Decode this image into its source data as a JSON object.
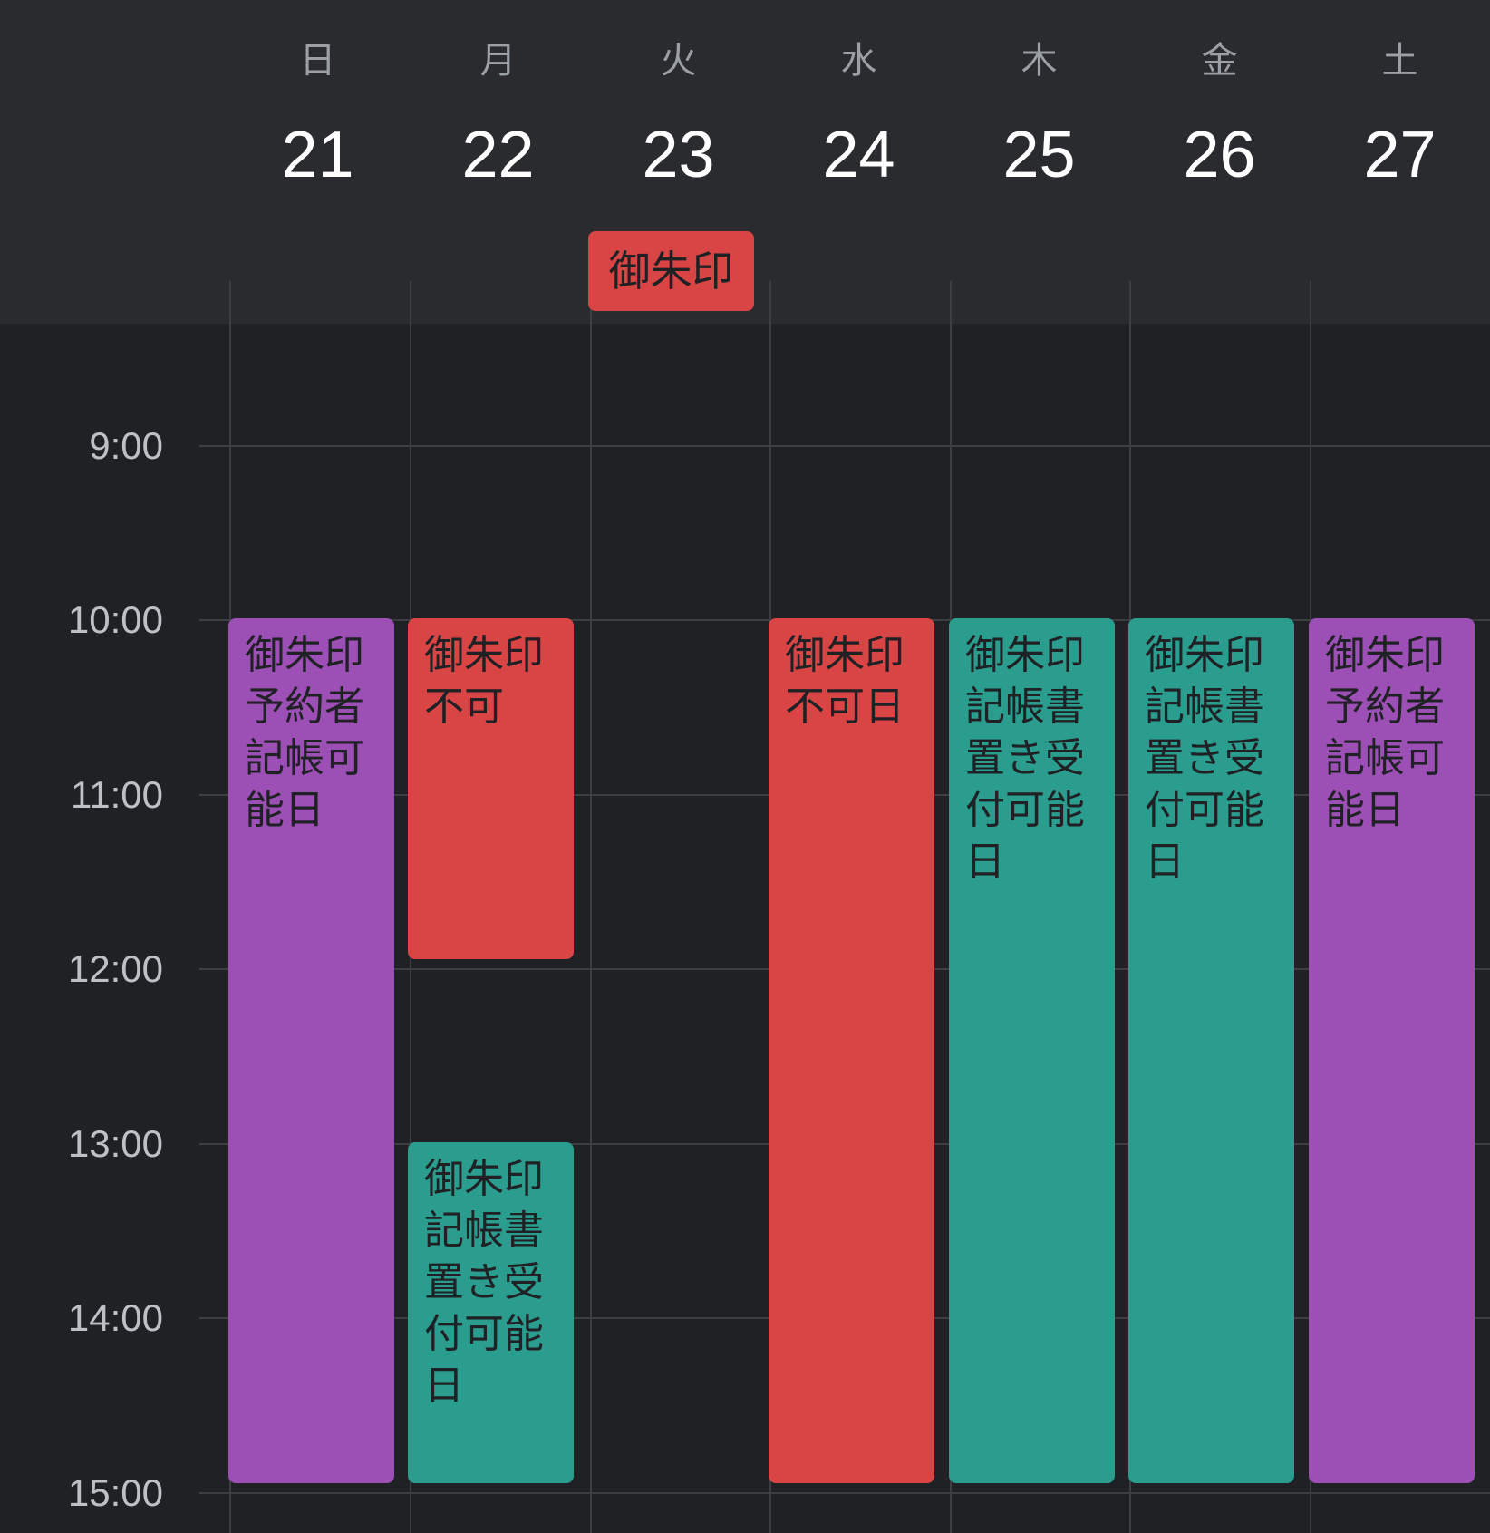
{
  "colors": {
    "header_bg": "#2a2b2f",
    "body_bg": "#202124",
    "grid_line": "#3c3e42",
    "purple": "#9c4fb5",
    "red": "#d94444",
    "teal": "#2a9d8f",
    "text_dark": "#202124",
    "weekday_text": "#9aa0a6",
    "daynum_text": "#ffffff",
    "time_text": "#bdc1c6"
  },
  "days": [
    {
      "weekday": "日",
      "date": "21"
    },
    {
      "weekday": "月",
      "date": "22"
    },
    {
      "weekday": "火",
      "date": "23"
    },
    {
      "weekday": "水",
      "date": "24"
    },
    {
      "weekday": "木",
      "date": "25"
    },
    {
      "weekday": "金",
      "date": "26"
    },
    {
      "weekday": "土",
      "date": "27"
    }
  ],
  "time_labels": [
    "9:00",
    "10:00",
    "11:00",
    "12:00",
    "13:00",
    "14:00",
    "15:00"
  ],
  "all_day_events": [
    {
      "day": 2,
      "title": "御朱印",
      "color": "red"
    }
  ],
  "events": [
    {
      "day": 0,
      "start": "10:00",
      "end": "15:00",
      "title": "御朱印予約者記帳可能日",
      "color": "purple"
    },
    {
      "day": 1,
      "start": "10:00",
      "end": "12:00",
      "title": "御朱印不可",
      "color": "red"
    },
    {
      "day": 1,
      "start": "13:00",
      "end": "15:00",
      "title": "御朱印記帳書置き受付可能日",
      "color": "teal"
    },
    {
      "day": 3,
      "start": "10:00",
      "end": "15:00",
      "title": "御朱印不可日",
      "color": "red"
    },
    {
      "day": 4,
      "start": "10:00",
      "end": "15:00",
      "title": "御朱印記帳書置き受付可能日",
      "color": "teal"
    },
    {
      "day": 5,
      "start": "10:00",
      "end": "15:00",
      "title": "御朱印記帳書置き受付可能日",
      "color": "teal"
    },
    {
      "day": 6,
      "start": "10:00",
      "end": "15:00",
      "title": "御朱印予約者記帳可能日",
      "color": "purple"
    }
  ]
}
